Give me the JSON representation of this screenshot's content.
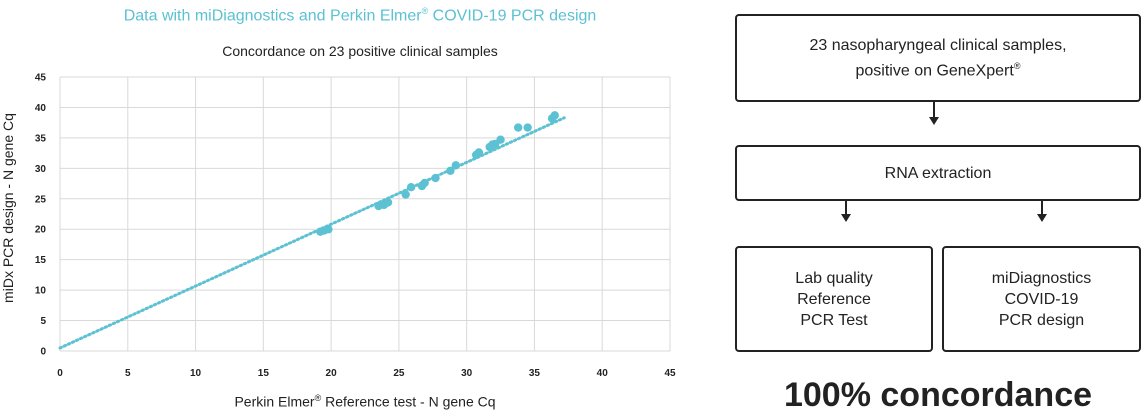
{
  "header": {
    "title_main": "Data with miDiagnostics and Perkin Elmer",
    "title_reg": "®",
    "title_tail": " COVID-19 PCR design"
  },
  "chart_data": {
    "type": "scatter",
    "title": "Concordance on 23 positive clinical samples",
    "xlabel_main": "Perkin Elmer",
    "xlabel_reg": "®",
    "xlabel_tail": " Reference test - N gene Cq",
    "ylabel": "miDx PCR design - N gene Cq",
    "xlim": [
      0,
      45
    ],
    "ylim": [
      0,
      45
    ],
    "xticks": [
      0,
      5,
      10,
      15,
      20,
      25,
      30,
      35,
      40,
      45
    ],
    "yticks": [
      0,
      5,
      10,
      15,
      20,
      25,
      30,
      35,
      40,
      45
    ],
    "grid": true,
    "color": "#5cc1d3",
    "points": [
      {
        "x": 19.2,
        "y": 19.6
      },
      {
        "x": 19.5,
        "y": 19.8
      },
      {
        "x": 19.8,
        "y": 20.0
      },
      {
        "x": 23.5,
        "y": 23.8
      },
      {
        "x": 23.9,
        "y": 24.0
      },
      {
        "x": 24.2,
        "y": 24.4
      },
      {
        "x": 25.5,
        "y": 25.7
      },
      {
        "x": 25.9,
        "y": 26.9
      },
      {
        "x": 26.7,
        "y": 27.1
      },
      {
        "x": 26.9,
        "y": 27.6
      },
      {
        "x": 27.7,
        "y": 28.4
      },
      {
        "x": 28.8,
        "y": 29.6
      },
      {
        "x": 29.2,
        "y": 30.5
      },
      {
        "x": 30.7,
        "y": 32.2
      },
      {
        "x": 30.9,
        "y": 32.6
      },
      {
        "x": 31.7,
        "y": 33.5
      },
      {
        "x": 31.9,
        "y": 33.9
      },
      {
        "x": 32.1,
        "y": 34.0
      },
      {
        "x": 32.5,
        "y": 34.7
      },
      {
        "x": 33.8,
        "y": 36.7
      },
      {
        "x": 34.5,
        "y": 36.7
      },
      {
        "x": 36.3,
        "y": 38.2
      },
      {
        "x": 36.5,
        "y": 38.7
      }
    ],
    "trendline": {
      "x": [
        0,
        37.2
      ],
      "y": [
        0.5,
        38.3
      ]
    }
  },
  "flow": {
    "samples_line1": "23 nasopharyngeal clinical samples,",
    "samples_line2_main": "positive on GeneXpert",
    "samples_line2_reg": "®",
    "rna": "RNA extraction",
    "lab": "Lab quality\nReference\nPCR Test",
    "midx": "miDiagnostics\nCOVID-19\nPCR design"
  },
  "conclusion": "100% concordance"
}
